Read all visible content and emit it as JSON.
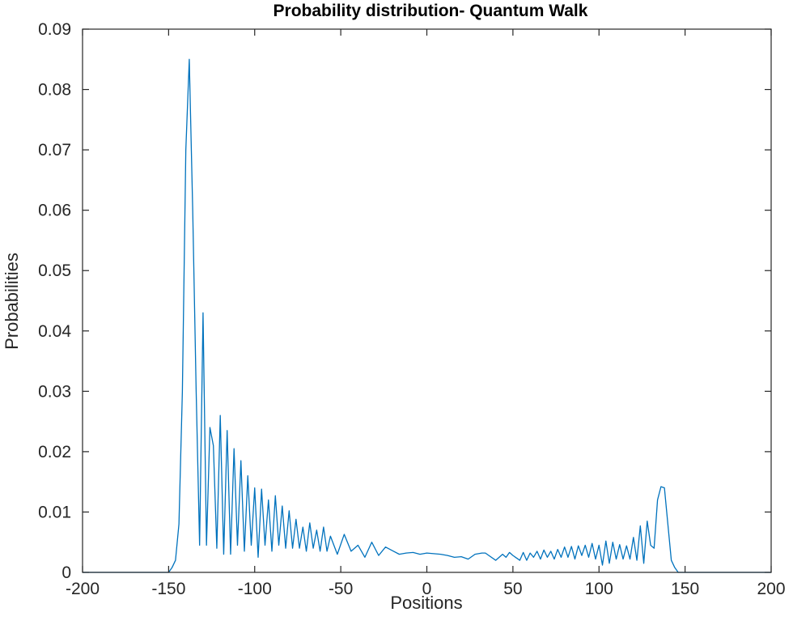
{
  "chart_data": {
    "type": "line",
    "title": "Probability distribution- Quantum Walk",
    "xlabel": "Positions",
    "ylabel": "Probabilities",
    "xlim": [
      -200,
      200
    ],
    "ylim": [
      0,
      0.09
    ],
    "xticks": [
      "-200",
      "-150",
      "-100",
      "-50",
      "0",
      "50",
      "100",
      "150",
      "200"
    ],
    "yticks": [
      "0",
      "0.01",
      "0.02",
      "0.03",
      "0.04",
      "0.05",
      "0.06",
      "0.07",
      "0.08",
      "0.09"
    ],
    "grid": false,
    "colors": {
      "line": "#0072BD",
      "axes": "#262626",
      "background": "#ffffff"
    },
    "series": [
      {
        "x": [
          -200,
          -150,
          -148,
          -146,
          -144,
          -142,
          -140,
          -138,
          -136,
          -134,
          -132,
          -130,
          -128,
          -126,
          -124,
          -122,
          -120,
          -118,
          -116,
          -114,
          -112,
          -110,
          -108,
          -106,
          -104,
          -102,
          -100,
          -98,
          -96,
          -94,
          -92,
          -90,
          -88,
          -86,
          -84,
          -82,
          -80,
          -78,
          -76,
          -74,
          -72,
          -70,
          -68,
          -66,
          -64,
          -62,
          -60,
          -58,
          -56,
          -52,
          -48,
          -44,
          -40,
          -36,
          -32,
          -28,
          -24,
          -20,
          -16,
          -12,
          -8,
          -4,
          0,
          4,
          8,
          12,
          16,
          20,
          24,
          28,
          32,
          34,
          36,
          40,
          44,
          46,
          48,
          50,
          54,
          56,
          58,
          60,
          62,
          64,
          66,
          68,
          70,
          72,
          74,
          76,
          78,
          80,
          82,
          84,
          86,
          88,
          90,
          92,
          94,
          96,
          98,
          100,
          102,
          104,
          106,
          108,
          110,
          112,
          114,
          116,
          118,
          120,
          122,
          124,
          126,
          128,
          130,
          132,
          134,
          136,
          138,
          140,
          142,
          144,
          146,
          148,
          150,
          200
        ],
        "y": [
          0,
          0,
          0.0008,
          0.002,
          0.008,
          0.03,
          0.07,
          0.085,
          0.06,
          0.03,
          0.0045,
          0.043,
          0.0045,
          0.024,
          0.021,
          0.004,
          0.026,
          0.003,
          0.0235,
          0.003,
          0.0205,
          0.0045,
          0.0185,
          0.0035,
          0.016,
          0.0045,
          0.014,
          0.0025,
          0.0138,
          0.0045,
          0.012,
          0.0035,
          0.0127,
          0.0045,
          0.011,
          0.004,
          0.0102,
          0.004,
          0.0088,
          0.004,
          0.0075,
          0.0035,
          0.0082,
          0.004,
          0.007,
          0.0035,
          0.0075,
          0.0035,
          0.006,
          0.003,
          0.0063,
          0.0035,
          0.0045,
          0.0025,
          0.005,
          0.0028,
          0.0042,
          0.0036,
          0.003,
          0.0032,
          0.0033,
          0.003,
          0.0032,
          0.0031,
          0.003,
          0.0028,
          0.0025,
          0.0026,
          0.0022,
          0.003,
          0.0032,
          0.0032,
          0.0028,
          0.002,
          0.003,
          0.0025,
          0.0033,
          0.0028,
          0.002,
          0.0033,
          0.002,
          0.0032,
          0.0025,
          0.0035,
          0.0022,
          0.0037,
          0.0025,
          0.0035,
          0.0022,
          0.0038,
          0.0025,
          0.0042,
          0.0025,
          0.0043,
          0.0022,
          0.0044,
          0.0028,
          0.0045,
          0.0025,
          0.0048,
          0.0022,
          0.0045,
          0.0012,
          0.0052,
          0.0015,
          0.005,
          0.0022,
          0.0046,
          0.0022,
          0.0044,
          0.0022,
          0.0058,
          0.002,
          0.0077,
          0.0015,
          0.0085,
          0.0045,
          0.004,
          0.012,
          0.0142,
          0.014,
          0.008,
          0.002,
          0.0008,
          0,
          0,
          0,
          0
        ]
      }
    ]
  }
}
